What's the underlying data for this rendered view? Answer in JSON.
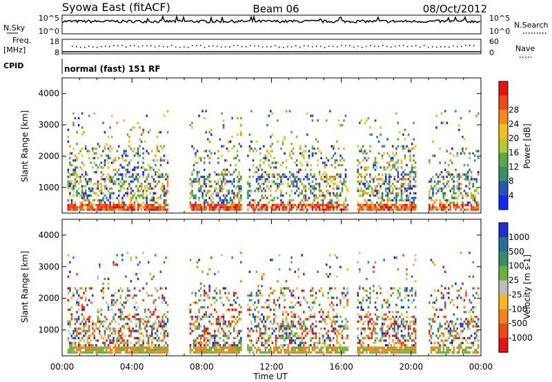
{
  "header": {
    "title": "Syowa East (fitACF)",
    "beam": "Beam 06",
    "date": "08/Oct/2012"
  },
  "top_panels": {
    "nsky_label": "N.Sky",
    "nsearch_label": "N.Search",
    "nsky_ticks": [
      "10^5",
      "10^0"
    ],
    "nsearch_ticks": [
      "10^5",
      "10^0"
    ],
    "freq_label": "Freq.",
    "freq_unit": "[MHz]",
    "freq_ticks": [
      "18",
      "8"
    ],
    "nave_label": "Nave",
    "nave_ticks": [
      "60",
      "0"
    ],
    "cpid_label": "CPID",
    "cpid_text": "normal (fast) 151 RF"
  },
  "chart_data": [
    {
      "type": "heatmap",
      "name": "power",
      "ylabel": "Slant Range [km]",
      "xlabel": "Time UT",
      "x_ticks": [
        "00:00",
        "04:00",
        "08:00",
        "12:00",
        "16:00",
        "20:00",
        "00:00"
      ],
      "y_ticks": [
        "1000",
        "2000",
        "3000",
        "4000"
      ],
      "xlim_hours": [
        0,
        24
      ],
      "ylim_km": [
        180,
        4500
      ],
      "colorbar": {
        "label": "Power [dB]",
        "ticks": [
          "4",
          "8",
          "12",
          "16",
          "20",
          "24",
          "28"
        ],
        "colors": [
          "#1428ff",
          "#2a55b8",
          "#3a8f6a",
          "#5aa84a",
          "#b6c832",
          "#f4c020",
          "#f38a1a",
          "#ec4b14",
          "#e4140f"
        ]
      }
    },
    {
      "type": "heatmap",
      "name": "velocity",
      "ylabel": "Slant Range [km]",
      "xlabel": "Time UT",
      "x_ticks": [
        "00:00",
        "04:00",
        "08:00",
        "12:00",
        "16:00",
        "20:00",
        "00:00"
      ],
      "y_ticks": [
        "1000",
        "2000",
        "3000",
        "4000"
      ],
      "xlim_hours": [
        0,
        24
      ],
      "ylim_km": [
        180,
        4500
      ],
      "colorbar": {
        "label": "Velocity [m s-1]",
        "ticks": [
          "1000",
          "500",
          "100",
          "25",
          "-25",
          "-100",
          "-500",
          "-1000"
        ],
        "colors": [
          "#2030c8",
          "#2a6c9a",
          "#3a8a6a",
          "#6ab040",
          "#bdbdbd",
          "#f4b820",
          "#f3841a",
          "#ec4a14",
          "#e4140f"
        ]
      }
    }
  ]
}
